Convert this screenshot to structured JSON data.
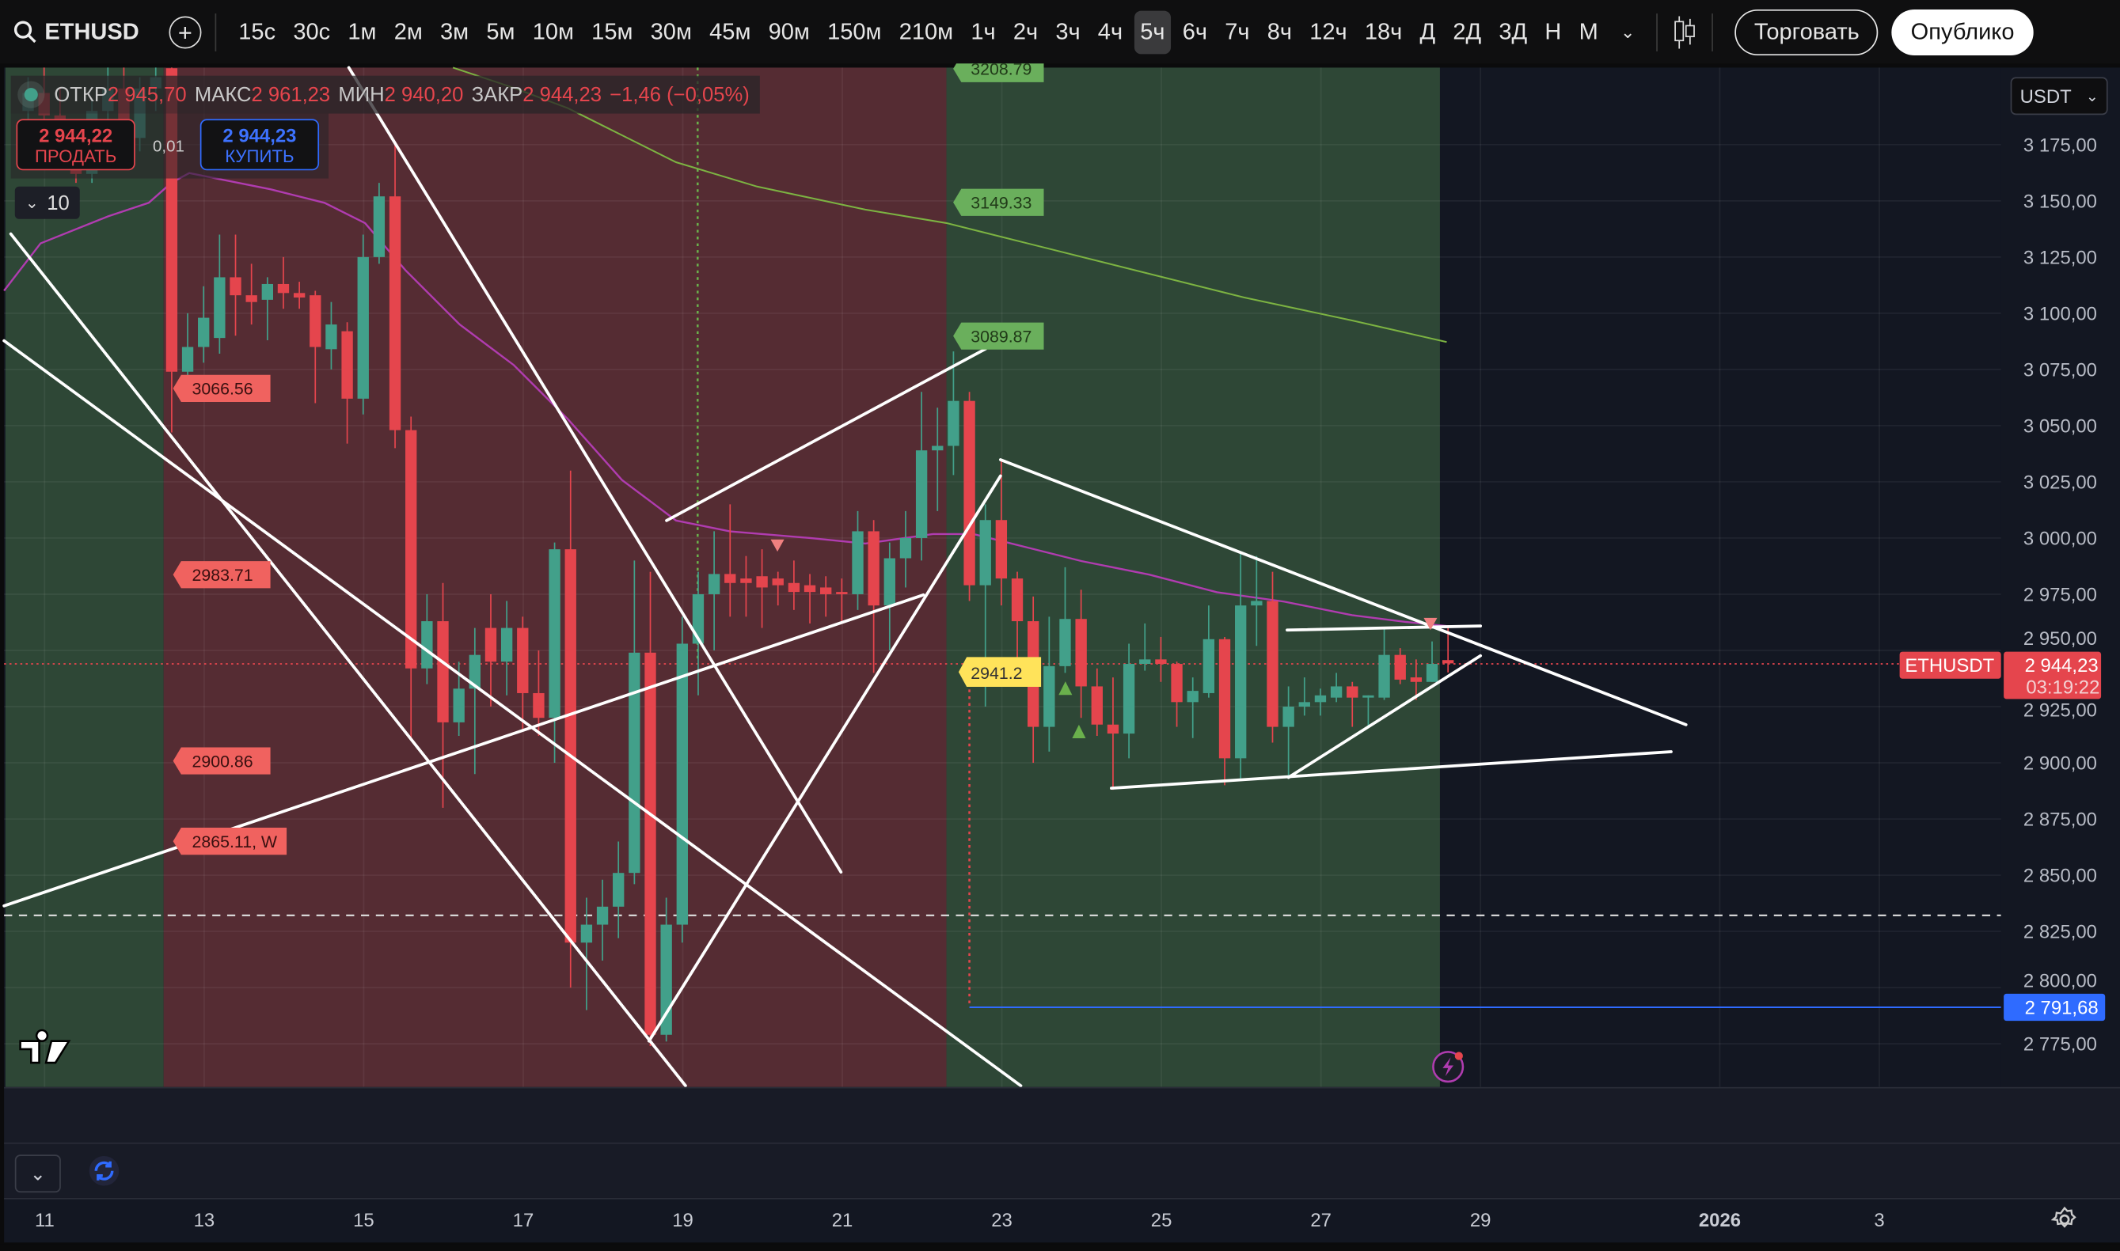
{
  "toolbar": {
    "symbol": "ETHUSD",
    "search_icon": "search-icon",
    "add_icon": "plus-circle-icon",
    "timeframes": [
      "15с",
      "30с",
      "1м",
      "2м",
      "3м",
      "5м",
      "10м",
      "15м",
      "30м",
      "45м",
      "90м",
      "150м",
      "210м",
      "1ч",
      "2ч",
      "3ч",
      "4ч",
      "5ч",
      "6ч",
      "7ч",
      "8ч",
      "12ч",
      "18ч",
      "Д",
      "2Д",
      "3Д",
      "Н",
      "М"
    ],
    "active_timeframe": "5ч",
    "more_icon": "chevron-down-icon",
    "chart_type_icon": "candles-icon",
    "trade_label": "Торговать",
    "publish_label": "Опублико"
  },
  "legend": {
    "open_label": "ОТКР",
    "open": "2 945,70",
    "high_label": "МАКС",
    "high": "2 961,23",
    "low_label": "МИН",
    "low": "2 940,20",
    "close_label": "ЗАКР",
    "close": "2 944,23",
    "change": "−1,46 (−0,05%)"
  },
  "trade": {
    "sell_price": "2 944,22",
    "sell_label": "ПРОДАТЬ",
    "spread": "0,01",
    "buy_price": "2 944,23",
    "buy_label": "КУПИТЬ",
    "lots": "10"
  },
  "currency": "USDT",
  "colors": {
    "up": "#42a08a",
    "down": "#e5454d",
    "accent_blue": "#2f6bff",
    "zone_red": "#552c33",
    "zone_green": "#2e4736",
    "bg": "#131722"
  },
  "chart_data": {
    "type": "candlestick",
    "symbol": "ETHUSDT",
    "interval": "5ч",
    "ylim": [
      2760,
      3210
    ],
    "y_ticks": [
      "3 175,00",
      "3 150,00",
      "3 125,00",
      "3 100,00",
      "3 075,00",
      "3 050,00",
      "3 025,00",
      "3 000,00",
      "2 975,00",
      "2 950,00",
      "2 925,00",
      "2 900,00",
      "2 875,00",
      "2 850,00",
      "2 825,00",
      "2 800,00",
      "2 775,00"
    ],
    "y_tick_values": [
      3175,
      3150,
      3125,
      3100,
      3075,
      3050,
      3025,
      3000,
      2975,
      2950,
      2925,
      2900,
      2875,
      2850,
      2825,
      2800,
      2775
    ],
    "x_ticks": [
      "11",
      "13",
      "15",
      "17",
      "19",
      "21",
      "23",
      "25",
      "27",
      "29",
      "2026",
      "3"
    ],
    "x_tick_bold": "2026",
    "grid": true,
    "ohlc": [
      [
        3190,
        3205,
        3180,
        3198
      ],
      [
        3198,
        3210,
        3185,
        3188
      ],
      [
        3188,
        3200,
        3170,
        3175
      ],
      [
        3175,
        3185,
        3158,
        3162
      ],
      [
        3162,
        3195,
        3158,
        3190
      ],
      [
        3190,
        3210,
        3182,
        3200
      ],
      [
        3200,
        3210,
        3170,
        3178
      ],
      [
        3178,
        3205,
        3172,
        3200
      ],
      [
        3200,
        3210,
        3190,
        3205
      ],
      [
        3209,
        3215,
        3047,
        3074
      ],
      [
        3074,
        3100,
        3068,
        3085
      ],
      [
        3085,
        3112,
        3078,
        3098
      ],
      [
        3089,
        3135,
        3082,
        3116
      ],
      [
        3116,
        3135,
        3090,
        3108
      ],
      [
        3108,
        3122,
        3095,
        3105
      ],
      [
        3106,
        3116,
        3088,
        3113
      ],
      [
        3113,
        3125,
        3102,
        3109
      ],
      [
        3109,
        3114,
        3102,
        3107
      ],
      [
        3108,
        3110,
        3060,
        3085
      ],
      [
        3084,
        3105,
        3075,
        3095
      ],
      [
        3092,
        3096,
        3042,
        3062
      ],
      [
        3062,
        3135,
        3055,
        3125
      ],
      [
        3125,
        3158,
        3122,
        3152
      ],
      [
        3152,
        3175,
        3040,
        3048
      ],
      [
        3048,
        3054,
        2910,
        2942
      ],
      [
        2942,
        2975,
        2935,
        2963
      ],
      [
        2963,
        2980,
        2880,
        2918
      ],
      [
        2918,
        2945,
        2912,
        2933
      ],
      [
        2933,
        2960,
        2895,
        2948
      ],
      [
        2960,
        2975,
        2925,
        2945
      ],
      [
        2945,
        2972,
        2930,
        2960
      ],
      [
        2960,
        2965,
        2915,
        2931
      ],
      [
        2931,
        2950,
        2912,
        2920
      ],
      [
        2920,
        2998,
        2900,
        2995
      ],
      [
        2995,
        3030,
        2800,
        2820
      ],
      [
        2820,
        2840,
        2790,
        2828
      ],
      [
        2828,
        2848,
        2812,
        2836
      ],
      [
        2836,
        2865,
        2822,
        2851
      ],
      [
        2851,
        2990,
        2846,
        2949
      ],
      [
        2949,
        2985,
        2774,
        2779
      ],
      [
        2779,
        2840,
        2776,
        2828
      ],
      [
        2828,
        2965,
        2820,
        2953
      ],
      [
        2953,
        2985,
        2930,
        2975
      ],
      [
        2975,
        3003,
        2950,
        2984
      ],
      [
        2984,
        3015,
        2965,
        2980
      ],
      [
        2982,
        2992,
        2965,
        2980
      ],
      [
        2983,
        2995,
        2960,
        2978
      ],
      [
        2982,
        2985,
        2970,
        2979
      ],
      [
        2980,
        2990,
        2968,
        2976
      ],
      [
        2979,
        2984,
        2962,
        2976
      ],
      [
        2978,
        2983,
        2965,
        2975
      ],
      [
        2976,
        2982,
        2962,
        2975
      ],
      [
        2975,
        3012,
        2968,
        3003
      ],
      [
        3003,
        3008,
        2940,
        2970
      ],
      [
        2970,
        2998,
        2950,
        2991
      ],
      [
        2991,
        3012,
        2978,
        3000
      ],
      [
        3000,
        3065,
        2990,
        3039
      ],
      [
        3039,
        3058,
        3012,
        3041
      ],
      [
        3041,
        3083,
        3028,
        3061
      ],
      [
        3061,
        3065,
        2972,
        2979
      ],
      [
        2979,
        3015,
        2925,
        3008
      ],
      [
        3008,
        3035,
        2970,
        2982
      ],
      [
        2982,
        2985,
        2943,
        2963
      ],
      [
        2963,
        2974,
        2900,
        2916
      ],
      [
        2916,
        2965,
        2905,
        2943
      ],
      [
        2943,
        2987,
        2940,
        2964
      ],
      [
        2964,
        2977,
        2920,
        2934
      ],
      [
        2934,
        2942,
        2912,
        2917
      ],
      [
        2917,
        2938,
        2888,
        2913
      ],
      [
        2913,
        2953,
        2902,
        2944
      ],
      [
        2944,
        2962,
        2941,
        2946
      ],
      [
        2946,
        2956,
        2936,
        2944
      ],
      [
        2944,
        2945,
        2916,
        2927
      ],
      [
        2927,
        2938,
        2911,
        2932
      ],
      [
        2931,
        2970,
        2929,
        2955
      ],
      [
        2955,
        2956,
        2890,
        2902
      ],
      [
        2902,
        2993,
        2893,
        2970
      ],
      [
        2970,
        2992,
        2952,
        2972
      ],
      [
        2972,
        2985,
        2909,
        2916
      ],
      [
        2916,
        2934,
        2894,
        2925
      ],
      [
        2925,
        2938,
        2921,
        2927
      ],
      [
        2927,
        2933,
        2921,
        2930
      ],
      [
        2929,
        2940,
        2927,
        2934
      ],
      [
        2934,
        2936,
        2916,
        2929
      ],
      [
        2929,
        2930,
        2916,
        2930
      ],
      [
        2929,
        2960,
        2928,
        2948
      ],
      [
        2948,
        2951,
        2935,
        2937
      ],
      [
        2938,
        2946,
        2928,
        2936
      ],
      [
        2936,
        2954,
        2936,
        2944
      ],
      [
        2945.7,
        2961.23,
        2940.2,
        2944.23
      ]
    ],
    "last_price": "2 944,23",
    "countdown": "03:19:22",
    "last_price_label": "ETHUSDT",
    "blue_level": "2 791,68",
    "left_labels": [
      "3066.56",
      "2983.71",
      "2900.86",
      "2865.11, W"
    ],
    "green_labels": [
      "3208.79",
      "3149.33",
      "3089.87"
    ],
    "yellow_label": "2941.2"
  }
}
